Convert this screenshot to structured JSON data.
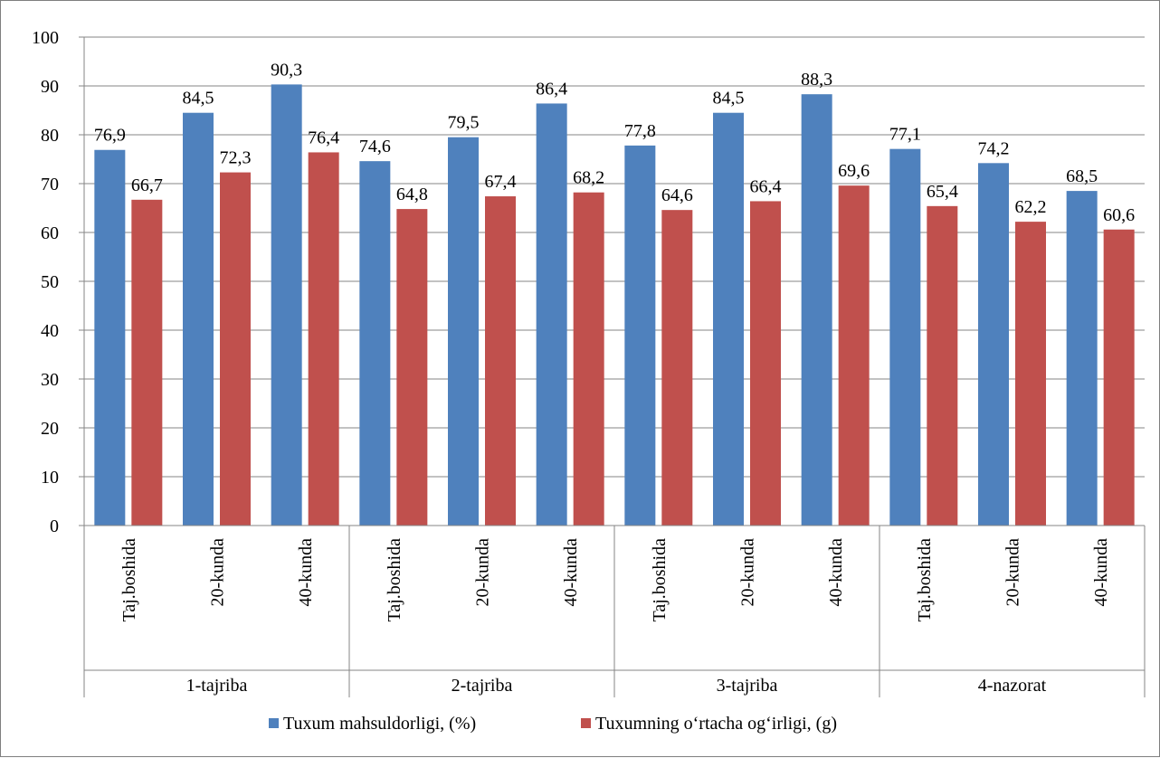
{
  "chart_data": {
    "type": "bar",
    "ylim": [
      0,
      100
    ],
    "yticks": [
      0,
      10,
      20,
      30,
      40,
      50,
      60,
      70,
      80,
      90,
      100
    ],
    "grid": true,
    "legend_position": "bottom",
    "groups": [
      {
        "label": "1-tajriba",
        "categories": [
          "Taj.boshida",
          "20-kunda",
          "40-kunda"
        ]
      },
      {
        "label": "2-tajriba",
        "categories": [
          "Taj.boshida",
          "20-kunda",
          "40-kunda"
        ]
      },
      {
        "label": "3-tajriba",
        "categories": [
          "Taj.boshida",
          "20-kunda",
          "40-kunda"
        ]
      },
      {
        "label": "4-nazorat",
        "categories": [
          "Taj.boshida",
          "20-kunda",
          "40-kunda"
        ]
      }
    ],
    "series": [
      {
        "name": "Tuxum mahsuldorligi, (%)",
        "color": "#4f81bd",
        "values": [
          76.9,
          84.5,
          90.3,
          74.6,
          79.5,
          86.4,
          77.8,
          84.5,
          88.3,
          77.1,
          74.2,
          68.5
        ],
        "value_labels": [
          "76,9",
          "84,5",
          "90,3",
          "74,6",
          "79,5",
          "86,4",
          "77,8",
          "84,5",
          "88,3",
          "77,1",
          "74,2",
          "68,5"
        ]
      },
      {
        "name": "Tuxumning o‘rtacha og‘irligi, (g)",
        "color": "#c0504d",
        "values": [
          66.7,
          72.3,
          76.4,
          64.8,
          67.4,
          68.2,
          64.6,
          66.4,
          69.6,
          65.4,
          62.2,
          60.6
        ],
        "value_labels": [
          "66,7",
          "72,3",
          "76,4",
          "64,8",
          "67,4",
          "68,2",
          "64,6",
          "66,4",
          "69,6",
          "65,4",
          "62,2",
          "60,6"
        ]
      }
    ]
  }
}
